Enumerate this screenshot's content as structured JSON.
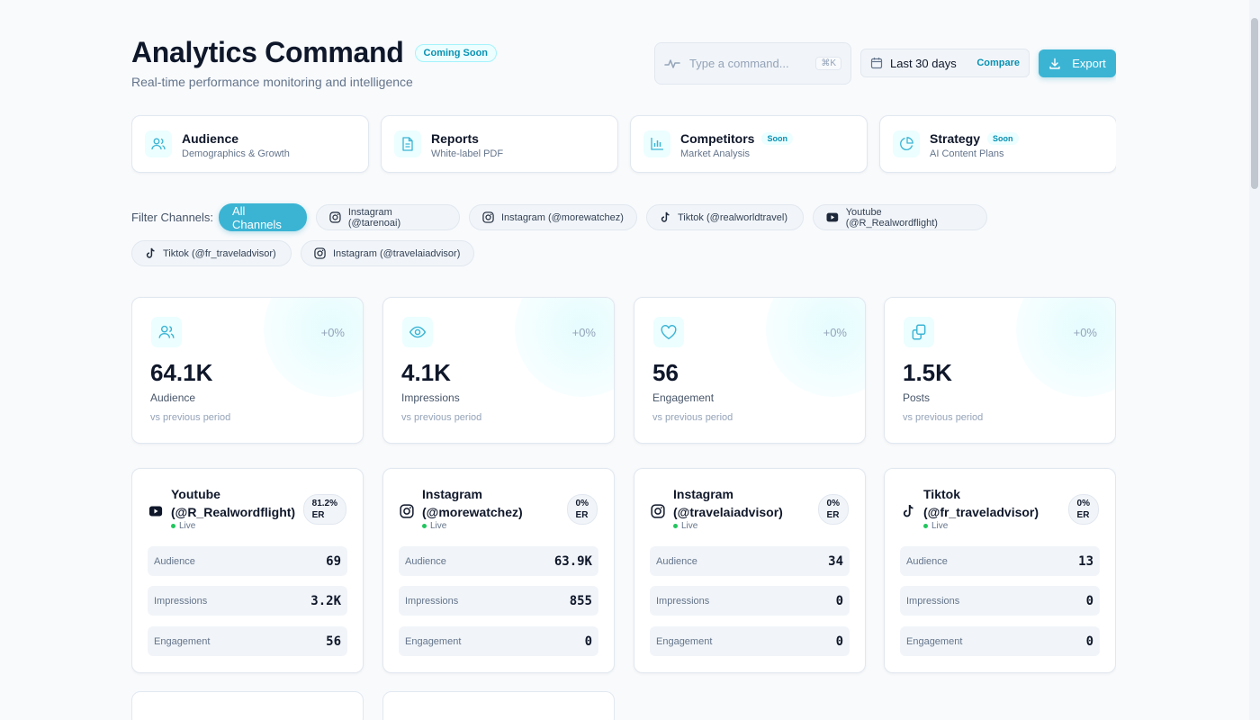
{
  "header": {
    "title": "Analytics Command",
    "badge": "Coming Soon",
    "subtitle": "Real-time performance monitoring and intelligence"
  },
  "command": {
    "placeholder": "Type a command...",
    "shortcut": "⌘K"
  },
  "date_range": {
    "label": "Last 30 days",
    "compare": "Compare"
  },
  "export_label": "Export",
  "nav_cards": [
    {
      "title": "Audience",
      "subtitle": "Demographics & Growth",
      "badge": "",
      "icon": "users-icon"
    },
    {
      "title": "Reports",
      "subtitle": "White-label PDF",
      "badge": "",
      "icon": "document-icon"
    },
    {
      "title": "Competitors",
      "subtitle": "Market Analysis",
      "badge": "Soon",
      "icon": "bar-chart-icon"
    },
    {
      "title": "Strategy",
      "subtitle": "AI Content Plans",
      "badge": "Soon",
      "icon": "pie-chart-icon"
    }
  ],
  "filters": {
    "label": "Filter Channels:",
    "chips": [
      {
        "label": "All Channels",
        "platform": "",
        "active": true
      },
      {
        "label": "Instagram (@tarenoai)",
        "platform": "instagram"
      },
      {
        "label": "Instagram (@morewatchez)",
        "platform": "instagram"
      },
      {
        "label": "Tiktok (@realworldtravel)",
        "platform": "tiktok"
      },
      {
        "label": "Youtube (@R_Realwordflight)",
        "platform": "youtube"
      },
      {
        "label": "Tiktok (@fr_traveladvisor)",
        "platform": "tiktok"
      },
      {
        "label": "Instagram (@travelaiadvisor)",
        "platform": "instagram"
      }
    ]
  },
  "stats": [
    {
      "value": "64.1K",
      "label": "Audience",
      "change": "+0%",
      "sub": "vs previous period",
      "icon": "users-icon"
    },
    {
      "value": "4.1K",
      "label": "Impressions",
      "change": "+0%",
      "sub": "vs previous period",
      "icon": "eye-icon"
    },
    {
      "value": "56",
      "label": "Engagement",
      "change": "+0%",
      "sub": "vs previous period",
      "icon": "heart-icon"
    },
    {
      "value": "1.5K",
      "label": "Posts",
      "change": "+0%",
      "sub": "vs previous period",
      "icon": "copy-icon"
    }
  ],
  "channels": [
    {
      "name": "Youtube (@R_Realwordflight)",
      "platform": "youtube",
      "er_value": "81.2%",
      "er_label": "ER",
      "status": "Live",
      "metrics": [
        {
          "k": "Audience",
          "v": "69"
        },
        {
          "k": "Impressions",
          "v": "3.2K"
        },
        {
          "k": "Engagement",
          "v": "56"
        }
      ]
    },
    {
      "name": "Instagram (@morewatchez)",
      "platform": "instagram",
      "er_value": "0%",
      "er_label": "ER",
      "status": "Live",
      "metrics": [
        {
          "k": "Audience",
          "v": "63.9K"
        },
        {
          "k": "Impressions",
          "v": "855"
        },
        {
          "k": "Engagement",
          "v": "0"
        }
      ]
    },
    {
      "name": "Instagram (@travelaiadvisor)",
      "platform": "instagram",
      "er_value": "0%",
      "er_label": "ER",
      "status": "Live",
      "metrics": [
        {
          "k": "Audience",
          "v": "34"
        },
        {
          "k": "Impressions",
          "v": "0"
        },
        {
          "k": "Engagement",
          "v": "0"
        }
      ]
    },
    {
      "name": "Tiktok (@fr_traveladvisor)",
      "platform": "tiktok",
      "er_value": "0%",
      "er_label": "ER",
      "status": "Live",
      "metrics": [
        {
          "k": "Audience",
          "v": "13"
        },
        {
          "k": "Impressions",
          "v": "0"
        },
        {
          "k": "Engagement",
          "v": "0"
        }
      ]
    }
  ],
  "colors": {
    "accent": "#3bb4d4",
    "accent_dark": "#0891b2",
    "accent_bg": "#ecfeff",
    "live": "#22c55e"
  }
}
